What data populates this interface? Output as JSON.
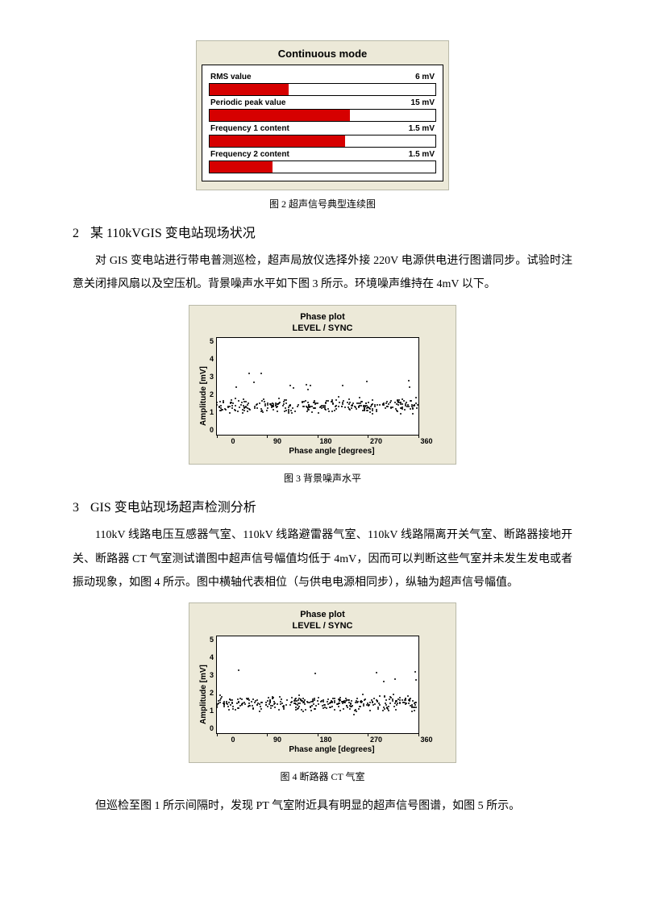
{
  "fig2": {
    "caption": "图 2  超声信号典型连续图",
    "panel_bg": "#ece9d8",
    "plot_bg": "#ffffff",
    "border_color": "#000000",
    "bar_color": "#d60000",
    "title": "Continuous mode",
    "title_fontsize": 13,
    "label_fontsize": 10,
    "rows": [
      {
        "label": "RMS value",
        "value_text": "6 mV",
        "fill_pct": 35
      },
      {
        "label": "Periodic peak value",
        "value_text": "15 mV",
        "fill_pct": 62
      },
      {
        "label": "Frequency 1 content",
        "value_text": "1.5 mV",
        "fill_pct": 60
      },
      {
        "label": "Frequency 2 content",
        "value_text": "1.5 mV",
        "fill_pct": 28
      }
    ]
  },
  "section2": {
    "num": "2",
    "title": "某 110kVGIS 变电站现场状况",
    "para": "对 GIS 变电站进行带电普测巡检，超声局放仪选择外接 220V 电源供电进行图谱同步。试验时注意关闭排风扇以及空压机。背景噪声水平如下图 3 所示。环境噪声维持在 4mV 以下。"
  },
  "fig3": {
    "caption": "图 3  背景噪声水平",
    "title_l1": "Phase plot",
    "title_l2": "LEVEL / SYNC",
    "ylabel": "Amplitude [mV]",
    "xlabel": "Phase angle [degrees]",
    "panel_bg": "#ece9d8",
    "plot_bg": "#ffffff",
    "dot_color": "#000000",
    "xlim": [
      0,
      360
    ],
    "ylim": [
      0,
      5
    ],
    "xticks": [
      "0",
      "90",
      "180",
      "270",
      "360"
    ],
    "yticks": [
      "5",
      "4",
      "3",
      "2",
      "1",
      "0"
    ],
    "band_center_mv": 1.5,
    "band_spread_mv": 0.6,
    "n_points": 320
  },
  "section3": {
    "num": "3",
    "title": "GIS 变电站现场超声检测分析",
    "para1": "110kV 线路电压互感器气室、110kV 线路避雷器气室、110kV 线路隔离开关气室、断路器接地开关、断路器 CT 气室测试谱图中超声信号幅值均低于 4mV，因而可以判断这些气室并未发生发电或者振动现象，如图 4 所示。图中横轴代表相位（与供电电源相同步），纵轴为超声信号幅值。"
  },
  "fig4": {
    "caption": "图 4  断路器 CT 气室",
    "title_l1": "Phase plot",
    "title_l2": "LEVEL / SYNC",
    "ylabel": "Amplitude [mV]",
    "xlabel": "Phase angle [degrees]",
    "panel_bg": "#ece9d8",
    "plot_bg": "#ffffff",
    "dot_color": "#000000",
    "xlim": [
      0,
      360
    ],
    "ylim": [
      0,
      5
    ],
    "xticks": [
      "0",
      "90",
      "180",
      "270",
      "360"
    ],
    "yticks": [
      "5",
      "4",
      "3",
      "2",
      "1",
      "0"
    ],
    "band_center_mv": 1.55,
    "band_spread_mv": 0.65,
    "n_points": 340
  },
  "closing_para": "但巡检至图 1 所示间隔时，发现 PT 气室附近具有明显的超声信号图谱，如图 5 所示。"
}
